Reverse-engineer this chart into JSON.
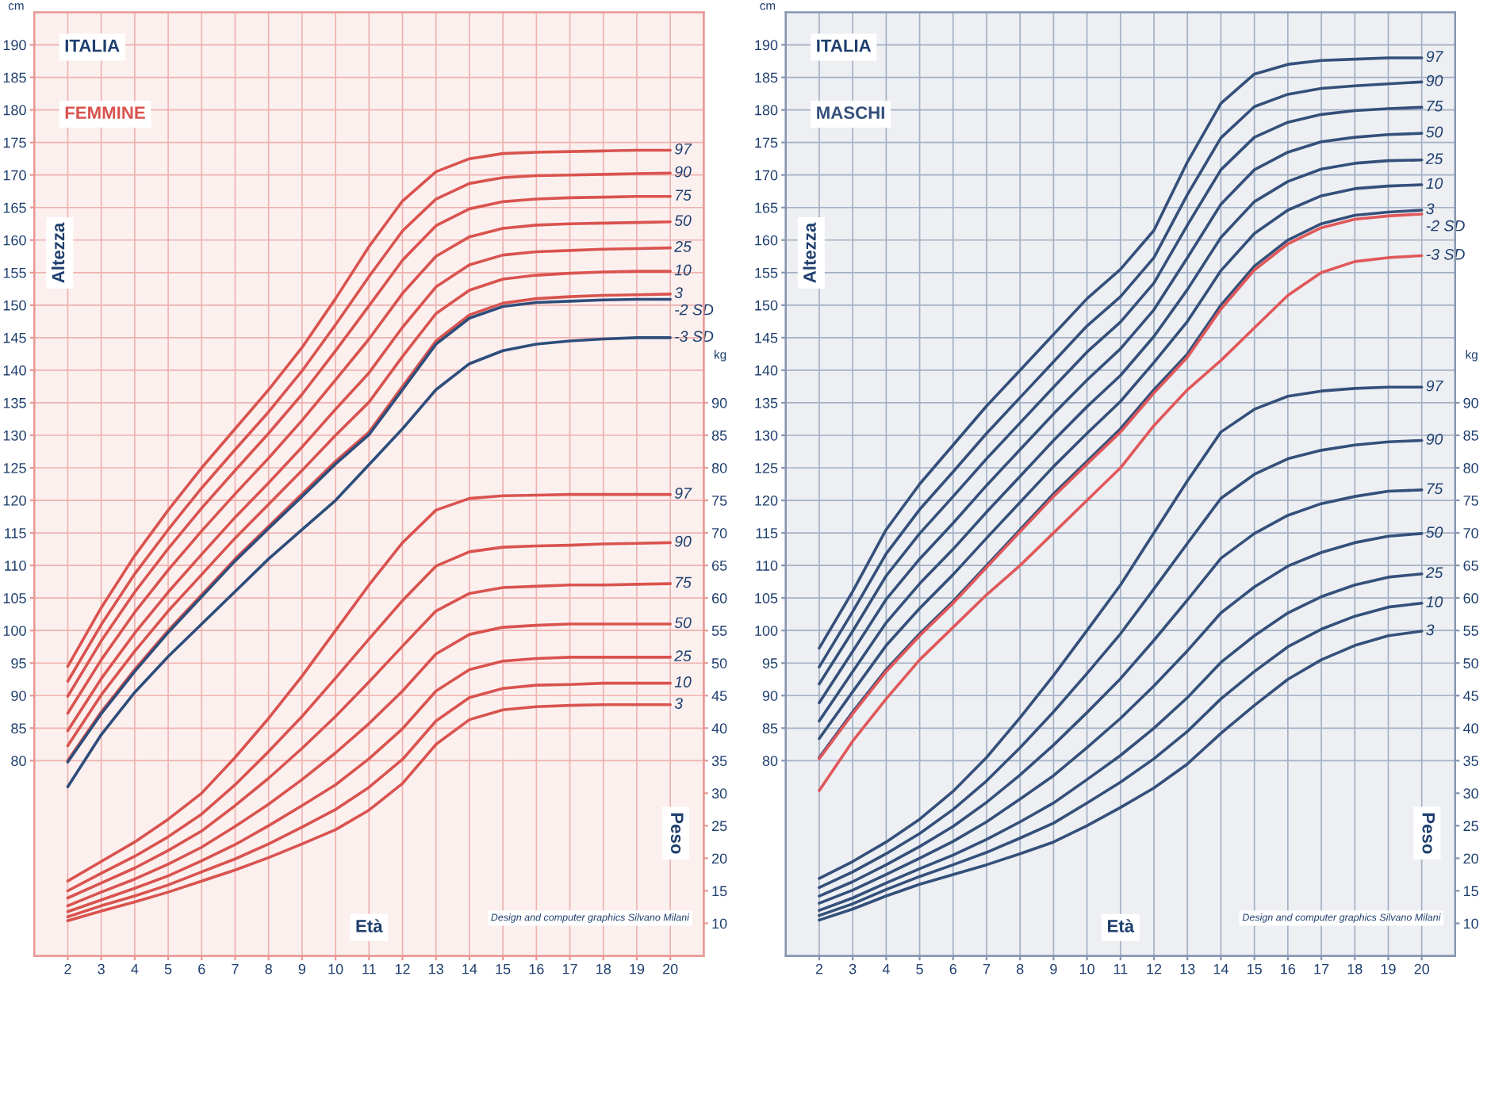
{
  "chart_data": [
    {
      "type": "line",
      "title": "ITALIA",
      "subtitle": "FEMMINE",
      "xlabel": "Età",
      "ylabel": "Altezza",
      "y2label": "Peso",
      "annotations": [
        "cm",
        "kg",
        "Design and computer graphics Silvano Milani"
      ],
      "x": [
        2,
        3,
        4,
        5,
        6,
        7,
        8,
        9,
        10,
        11,
        12,
        13,
        14,
        15,
        16,
        17,
        18,
        19,
        20
      ],
      "xlim": [
        1,
        21
      ],
      "xticks": [
        2,
        3,
        4,
        5,
        6,
        7,
        8,
        9,
        10,
        11,
        12,
        13,
        14,
        15,
        16,
        17,
        18,
        19,
        20
      ],
      "ylim": [
        50,
        195
      ],
      "yticks": [
        80,
        85,
        90,
        95,
        100,
        105,
        110,
        115,
        120,
        125,
        130,
        135,
        140,
        145,
        150,
        155,
        160,
        165,
        170,
        175,
        180,
        185,
        190
      ],
      "y2lim": [
        5,
        150
      ],
      "y2ticks": [
        10,
        15,
        20,
        25,
        30,
        35,
        40,
        45,
        50,
        55,
        60,
        65,
        70,
        75,
        80,
        85,
        90
      ],
      "grid": true,
      "series": [
        {
          "name": "97",
          "color": "#d9534f",
          "values": [
            94.5,
            103.5,
            111.5,
            118.5,
            125,
            131,
            137,
            143.5,
            151,
            159,
            166,
            170.5,
            172.5,
            173.3,
            173.5,
            173.6,
            173.7,
            173.8,
            173.8
          ]
        },
        {
          "name": "90",
          "color": "#d9534f",
          "values": [
            92.2,
            100.9,
            108.7,
            115.5,
            121.9,
            127.8,
            133.6,
            139.9,
            147,
            154.4,
            161.4,
            166.3,
            168.7,
            169.6,
            169.9,
            170,
            170.1,
            170.2,
            170.3
          ]
        },
        {
          "name": "75",
          "color": "#d9534f",
          "values": [
            89.9,
            98.4,
            105.9,
            112.6,
            118.8,
            124.6,
            130.3,
            136.3,
            143,
            149.9,
            156.9,
            162.2,
            164.8,
            165.9,
            166.3,
            166.5,
            166.6,
            166.7,
            166.7
          ]
        },
        {
          "name": "50",
          "color": "#d9534f",
          "values": [
            87.3,
            95.5,
            102.8,
            109.3,
            115.3,
            121,
            126.5,
            132.3,
            138.5,
            144.8,
            151.8,
            157.5,
            160.5,
            161.8,
            162.3,
            162.5,
            162.6,
            162.7,
            162.8
          ]
        },
        {
          "name": "25",
          "color": "#d9534f",
          "values": [
            84.6,
            92.6,
            99.6,
            105.9,
            111.7,
            117.4,
            122.7,
            128.2,
            134,
            139.6,
            146.6,
            152.8,
            156.2,
            157.7,
            158.2,
            158.4,
            158.6,
            158.7,
            158.8
          ]
        },
        {
          "name": "10",
          "color": "#d9534f",
          "values": [
            82.3,
            90.1,
            96.8,
            103,
            108.6,
            114.2,
            119.4,
            124.6,
            130,
            135.1,
            142.1,
            148.7,
            152.3,
            154,
            154.6,
            154.9,
            155.1,
            155.2,
            155.2
          ]
        },
        {
          "name": "3",
          "color": "#d9534f",
          "values": [
            80,
            87.5,
            94,
            100,
            105.5,
            111,
            116,
            121,
            126,
            130.5,
            137.5,
            144.5,
            148.5,
            150.3,
            151,
            151.3,
            151.5,
            151.6,
            151.7
          ]
        },
        {
          "name": "-2 SD",
          "color": "#2e4d7b",
          "values": [
            79.8,
            87.2,
            93.7,
            99.7,
            105.2,
            110.7,
            115.7,
            120.6,
            125.6,
            130.1,
            137,
            144,
            148,
            149.8,
            150.4,
            150.6,
            150.8,
            150.9,
            150.9
          ]
        },
        {
          "name": "-3 SD",
          "color": "#2e4d7b",
          "values": [
            76,
            84,
            90.5,
            96,
            101,
            106,
            111,
            115.5,
            120,
            125.5,
            131,
            137,
            141,
            143,
            144,
            144.5,
            144.8,
            145,
            145
          ]
        },
        {
          "name": "97",
          "color": "#d9534f",
          "axis": "y2",
          "values": [
            16.5,
            19.5,
            22.5,
            26,
            30,
            35.5,
            41.5,
            48,
            55,
            62,
            68.5,
            73.5,
            75.3,
            75.7,
            75.8,
            75.9,
            75.9,
            75.9,
            75.9
          ]
        },
        {
          "name": "90",
          "color": "#d9534f",
          "axis": "y2",
          "values": [
            15,
            17.7,
            20.3,
            23.3,
            26.8,
            31.3,
            36.4,
            41.8,
            47.7,
            53.7,
            59.6,
            64.9,
            67.1,
            67.8,
            68,
            68.1,
            68.3,
            68.4,
            68.5
          ]
        },
        {
          "name": "75",
          "color": "#d9534f",
          "axis": "y2",
          "values": [
            13.9,
            16.2,
            18.5,
            21.2,
            24.2,
            28.1,
            32.3,
            36.9,
            41.8,
            47.1,
            52.6,
            58,
            60.7,
            61.6,
            61.8,
            62,
            62,
            62.1,
            62.2
          ]
        },
        {
          "name": "50",
          "color": "#d9534f",
          "axis": "y2",
          "values": [
            12.7,
            14.8,
            16.8,
            19.1,
            21.7,
            24.9,
            28.3,
            32.1,
            36.2,
            40.7,
            45.7,
            51.4,
            54.4,
            55.5,
            55.8,
            56,
            56,
            56,
            56
          ]
        },
        {
          "name": "25",
          "color": "#d9534f",
          "axis": "y2",
          "values": [
            11.8,
            13.6,
            15.4,
            17.3,
            19.6,
            22.1,
            25,
            28.1,
            31.3,
            35.3,
            39.9,
            45.7,
            49,
            50.3,
            50.7,
            50.9,
            50.9,
            50.9,
            50.9
          ]
        },
        {
          "name": "10",
          "color": "#d9534f",
          "axis": "y2",
          "values": [
            11,
            12.7,
            14.2,
            15.9,
            17.9,
            19.9,
            22.2,
            24.8,
            27.5,
            30.9,
            35.2,
            41.1,
            44.7,
            46.1,
            46.6,
            46.7,
            46.9,
            46.9,
            46.9
          ]
        },
        {
          "name": "3",
          "color": "#d9534f",
          "axis": "y2",
          "values": [
            10.4,
            11.9,
            13.3,
            14.8,
            16.5,
            18.2,
            20.1,
            22.2,
            24.4,
            27.4,
            31.5,
            37.5,
            41.3,
            42.8,
            43.3,
            43.5,
            43.6,
            43.6,
            43.6
          ]
        }
      ]
    },
    {
      "type": "line",
      "title": "ITALIA",
      "subtitle": "MASCHI",
      "xlabel": "Età",
      "ylabel": "Altezza",
      "y2label": "Peso",
      "annotations": [
        "cm",
        "kg",
        "Design and computer graphics Silvano Milani"
      ],
      "x": [
        2,
        3,
        4,
        5,
        6,
        7,
        8,
        9,
        10,
        11,
        12,
        13,
        14,
        15,
        16,
        17,
        18,
        19,
        20
      ],
      "xlim": [
        1,
        21
      ],
      "xticks": [
        2,
        3,
        4,
        5,
        6,
        7,
        8,
        9,
        10,
        11,
        12,
        13,
        14,
        15,
        16,
        17,
        18,
        19,
        20
      ],
      "ylim": [
        50,
        195
      ],
      "yticks": [
        80,
        85,
        90,
        95,
        100,
        105,
        110,
        115,
        120,
        125,
        130,
        135,
        140,
        145,
        150,
        155,
        160,
        165,
        170,
        175,
        180,
        185,
        190
      ],
      "y2lim": [
        5,
        150
      ],
      "y2ticks": [
        10,
        15,
        20,
        25,
        30,
        35,
        40,
        45,
        50,
        55,
        60,
        65,
        70,
        75,
        80,
        85,
        90
      ],
      "grid": true,
      "series": [
        {
          "name": "97",
          "color": "#34507a",
          "values": [
            97.3,
            106,
            115.5,
            122.5,
            128.5,
            134.5,
            140,
            145.5,
            151,
            155.5,
            161.5,
            172,
            181,
            185.5,
            187,
            187.6,
            187.8,
            188,
            188
          ]
        },
        {
          "name": "90",
          "color": "#34507a",
          "values": [
            94.4,
            102.9,
            111.8,
            118.6,
            124.4,
            130.3,
            135.8,
            141.3,
            146.8,
            151.3,
            157.3,
            167,
            175.7,
            180.5,
            182.4,
            183.3,
            183.7,
            184,
            184.3
          ]
        },
        {
          "name": "75",
          "color": "#34507a",
          "values": [
            91.8,
            99.9,
            108.4,
            114.9,
            120.6,
            126.4,
            131.9,
            137.4,
            142.8,
            147.4,
            153.4,
            162.3,
            170.8,
            175.8,
            178.1,
            179.3,
            179.9,
            180.2,
            180.4
          ]
        },
        {
          "name": "50",
          "color": "#34507a",
          "values": [
            88.9,
            96.8,
            104.8,
            111,
            116.5,
            122.3,
            127.8,
            133.3,
            138.5,
            143.3,
            149.3,
            157.3,
            165.5,
            170.8,
            173.5,
            175.1,
            175.8,
            176.2,
            176.4
          ]
        },
        {
          "name": "25",
          "color": "#34507a",
          "values": [
            86.1,
            93.7,
            101.2,
            107.2,
            112.5,
            118.2,
            123.7,
            129.2,
            134.4,
            139.2,
            145.2,
            152.4,
            160.4,
            165.9,
            169,
            170.9,
            171.8,
            172.2,
            172.3
          ]
        },
        {
          "name": "10",
          "color": "#34507a",
          "values": [
            83.4,
            90.6,
            97.7,
            103.4,
            108.6,
            114.2,
            119.7,
            125.2,
            130.3,
            135.2,
            141.2,
            147.5,
            155.3,
            161,
            164.6,
            166.8,
            167.9,
            168.3,
            168.5
          ]
        },
        {
          "name": "3",
          "color": "#34507a",
          "values": [
            80.5,
            87.5,
            94,
            99.5,
            104.5,
            110,
            115.5,
            121,
            126,
            131,
            137,
            142.5,
            150,
            156,
            160,
            162.5,
            163.8,
            164.3,
            164.6
          ]
        },
        {
          "name": "-2 SD",
          "color": "#e0585a",
          "values": [
            80.3,
            87.2,
            93.7,
            99.2,
            104.2,
            109.7,
            115.2,
            120.6,
            125.6,
            130.5,
            136.5,
            142,
            149.4,
            155.4,
            159.4,
            161.9,
            163.2,
            163.7,
            164
          ]
        },
        {
          "name": "-3 SD",
          "color": "#e0585a",
          "values": [
            75.4,
            83,
            89.5,
            95.5,
            100.5,
            105.5,
            110,
            115,
            120,
            125,
            131.5,
            137,
            141.5,
            146.5,
            151.5,
            155,
            156.7,
            157.3,
            157.6
          ]
        },
        {
          "name": "97",
          "color": "#34507a",
          "axis": "y2",
          "values": [
            16.9,
            19.5,
            22.5,
            26,
            30.3,
            35.5,
            41.6,
            48.1,
            55,
            62,
            70,
            78,
            85.5,
            89,
            91,
            91.8,
            92.2,
            92.4,
            92.4
          ]
        },
        {
          "name": "90",
          "color": "#34507a",
          "axis": "y2",
          "values": [
            15.5,
            17.9,
            20.7,
            23.8,
            27.5,
            31.9,
            37,
            42.5,
            48.4,
            54.5,
            61.4,
            68.4,
            75.3,
            79,
            81.4,
            82.7,
            83.5,
            84,
            84.2
          ]
        },
        {
          "name": "75",
          "color": "#34507a",
          "axis": "y2",
          "values": [
            14.2,
            16.4,
            19,
            21.8,
            24.9,
            28.6,
            32.8,
            37.4,
            42.4,
            47.6,
            53.5,
            59.7,
            66.1,
            69.9,
            72.7,
            74.5,
            75.6,
            76.4,
            76.6
          ]
        },
        {
          "name": "50",
          "color": "#34507a",
          "axis": "y2",
          "values": [
            13.1,
            15.1,
            17.5,
            20,
            22.6,
            25.6,
            29.1,
            32.7,
            37,
            41.5,
            46.5,
            51.9,
            57.7,
            61.7,
            64.9,
            67,
            68.5,
            69.5,
            69.9
          ]
        },
        {
          "name": "25",
          "color": "#34507a",
          "axis": "y2",
          "values": [
            12,
            13.9,
            16.2,
            18.4,
            20.5,
            22.9,
            25.6,
            28.5,
            32.1,
            35.8,
            40,
            44.7,
            50.1,
            54.2,
            57.7,
            60.2,
            62,
            63.2,
            63.7
          ]
        },
        {
          "name": "10",
          "color": "#34507a",
          "axis": "y2",
          "values": [
            11.2,
            13,
            15.2,
            17.2,
            19,
            20.9,
            23.1,
            25.4,
            28.5,
            31.7,
            35.3,
            39.5,
            44.5,
            48.7,
            52.5,
            55.2,
            57.2,
            58.6,
            59.2
          ]
        },
        {
          "name": "3",
          "color": "#34507a",
          "axis": "y2",
          "values": [
            10.5,
            12.2,
            14.2,
            16,
            17.5,
            19,
            20.7,
            22.5,
            25,
            27.8,
            30.8,
            34.5,
            39.2,
            43.5,
            47.5,
            50.5,
            52.7,
            54.2,
            54.9
          ]
        }
      ]
    }
  ]
}
